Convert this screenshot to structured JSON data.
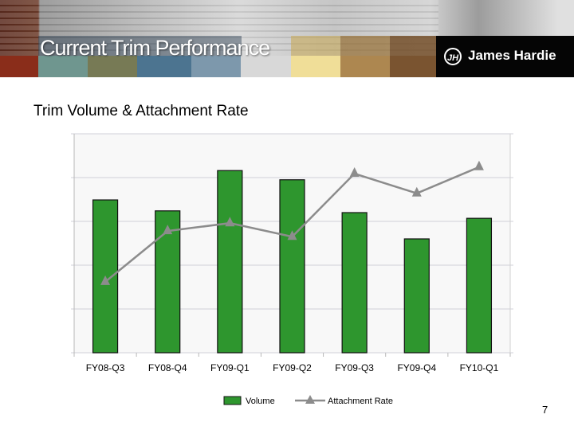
{
  "header": {
    "title": "Current Trim Performance",
    "logo_text": "James Hardie",
    "logo_mark": "JH"
  },
  "slide": {
    "subtitle": "Trim Volume & Attachment Rate",
    "page_number": "7"
  },
  "colors": {
    "bar": "#2e962e",
    "line": "#8c8c8c",
    "plot_bg": "#f8f8f8",
    "grid": "#d0d0d8"
  },
  "chart_data": {
    "type": "bar",
    "title": "Trim Volume & Attachment Rate",
    "categories": [
      "FY08-Q3",
      "FY08-Q4",
      "FY09-Q1",
      "FY09-Q2",
      "FY09-Q3",
      "FY09-Q4",
      "FY10-Q1"
    ],
    "series": [
      {
        "name": "Volume",
        "type": "bar",
        "values": [
          3.49,
          3.24,
          4.16,
          3.95,
          3.2,
          2.6,
          3.07
        ]
      },
      {
        "name": "Attachment Rate",
        "type": "line",
        "marker": "triangle",
        "values": [
          1.62,
          2.78,
          2.96,
          2.65,
          4.09,
          3.64,
          4.24
        ]
      }
    ],
    "ylim": [
      0,
      5
    ],
    "yticks_labeled": false,
    "grid": true,
    "legend": "bottom-center",
    "xlabel": "",
    "ylabel": ""
  }
}
